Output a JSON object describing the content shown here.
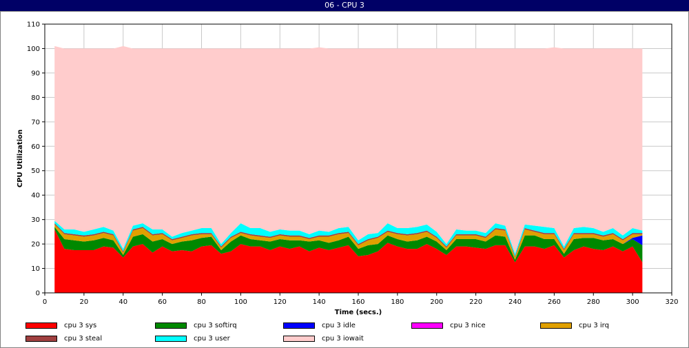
{
  "window": {
    "title": "06 - CPU 3"
  },
  "chart_data": {
    "type": "area",
    "stacked": true,
    "title": "06 - CPU 3",
    "xlabel": "Time (secs.)",
    "ylabel": "CPU Utilization",
    "xlim": [
      0,
      320
    ],
    "ylim": [
      0,
      110
    ],
    "xticks": [
      0,
      20,
      40,
      60,
      80,
      100,
      120,
      140,
      160,
      180,
      200,
      220,
      240,
      260,
      280,
      300,
      320
    ],
    "yticks": [
      0,
      10,
      20,
      30,
      40,
      50,
      60,
      70,
      80,
      90,
      100,
      110
    ],
    "grid": true,
    "legend_position": "bottom",
    "x": [
      5,
      10,
      15,
      20,
      25,
      30,
      35,
      40,
      45,
      50,
      55,
      60,
      65,
      70,
      75,
      80,
      85,
      90,
      95,
      100,
      105,
      110,
      115,
      120,
      125,
      130,
      135,
      140,
      145,
      150,
      155,
      160,
      165,
      170,
      175,
      180,
      185,
      190,
      195,
      200,
      205,
      210,
      215,
      220,
      225,
      230,
      235,
      240,
      245,
      250,
      255,
      260,
      265,
      270,
      275,
      280,
      285,
      290,
      295,
      300,
      305
    ],
    "series": [
      {
        "name": "cpu 3 sys",
        "color": "#ff0000",
        "values": [
          26,
          18,
          17.5,
          17.5,
          17.5,
          19,
          18.5,
          14.5,
          19,
          20,
          16.5,
          19,
          17,
          17.5,
          17,
          19,
          19.5,
          16,
          17,
          20,
          19,
          19,
          17.5,
          19,
          18,
          19,
          17,
          18.5,
          17.5,
          18.5,
          19.5,
          15,
          15.5,
          17,
          20.5,
          19,
          18,
          18,
          20,
          18,
          15.5,
          19,
          19,
          18.5,
          18,
          19.5,
          19.5,
          12.5,
          19,
          19,
          18,
          19.5,
          14.5,
          17.5,
          19,
          18,
          17.5,
          19,
          17,
          19,
          12.5
        ]
      },
      {
        "name": "cpu 3 softirq",
        "color": "#008800",
        "values": [
          1,
          4,
          4,
          3.5,
          4,
          3.5,
          3,
          1,
          4,
          4,
          4.5,
          3,
          3,
          3.5,
          4.5,
          3.5,
          3.5,
          1.5,
          4,
          3.5,
          3,
          2.5,
          3.5,
          3,
          3.5,
          2.5,
          4,
          3,
          3,
          3,
          3.5,
          3,
          4,
          3,
          3,
          3,
          3,
          3.5,
          3,
          3,
          2,
          3,
          3,
          3.5,
          3,
          4,
          3.5,
          1,
          4.5,
          4.5,
          4,
          2.5,
          1.5,
          4.5,
          3.5,
          4.5,
          4,
          3,
          3,
          3,
          7
        ]
      },
      {
        "name": "cpu 3 idle",
        "color": "#0000ff",
        "values": [
          0,
          0,
          0,
          0,
          0,
          0,
          0,
          0,
          0,
          0,
          0,
          0,
          0,
          0,
          0,
          0,
          0,
          0,
          0,
          0,
          0,
          0,
          0,
          0,
          0,
          0,
          0,
          0,
          0,
          0,
          0,
          0,
          0,
          0,
          0,
          0,
          0,
          0,
          0,
          0,
          0,
          0,
          0,
          0,
          0,
          0,
          0,
          0,
          0,
          0,
          0,
          0,
          0,
          0,
          0,
          0,
          0,
          0,
          0,
          0.5,
          4
        ]
      },
      {
        "name": "cpu 3 nice",
        "color": "#ff00ff",
        "values": [
          0,
          0,
          0,
          0,
          0,
          0,
          0,
          0,
          0,
          0,
          0,
          0,
          0,
          0,
          0,
          0,
          0,
          0,
          0,
          0,
          0,
          0,
          0,
          0,
          0,
          0,
          0,
          0,
          0,
          0,
          0,
          0,
          0,
          0,
          0,
          0,
          0,
          0,
          0,
          0,
          0,
          0,
          0,
          0,
          0,
          0,
          0,
          0,
          0,
          0,
          0,
          0,
          0,
          0,
          0,
          0,
          0,
          0,
          0,
          0,
          0
        ]
      },
      {
        "name": "cpu 3 irq",
        "color": "#e0a000",
        "values": [
          1,
          2,
          2,
          2,
          2,
          2,
          2,
          1,
          2.5,
          2.5,
          2.5,
          2,
          1.5,
          1.5,
          2,
          1.5,
          1,
          1,
          1.5,
          1,
          1.5,
          1.5,
          1.5,
          1.5,
          1.5,
          1.5,
          1,
          1.5,
          2.5,
          2.5,
          1.5,
          1.5,
          2,
          2.5,
          1.5,
          2,
          2.5,
          2.5,
          2,
          1.5,
          1,
          1.5,
          1.5,
          1.5,
          1.5,
          2.5,
          2.5,
          1,
          2.5,
          1.5,
          2,
          2,
          1.5,
          2,
          1.5,
          1.5,
          1.5,
          2,
          1.5,
          1.5,
          0.5
        ]
      },
      {
        "name": "cpu 3 steal",
        "color": "#a04040",
        "values": [
          0.5,
          0.5,
          0.5,
          0.5,
          0.5,
          0.5,
          0.5,
          0.5,
          0.5,
          0.5,
          0.5,
          0.5,
          0.5,
          0.5,
          0.5,
          0.5,
          0.5,
          0.5,
          0.5,
          0.5,
          0.5,
          0.5,
          0.5,
          0.5,
          0.5,
          0.5,
          0.5,
          0.5,
          0.5,
          0.5,
          0.5,
          0.5,
          0.5,
          0.5,
          0.5,
          0.5,
          0.5,
          0.5,
          0.5,
          0.5,
          0.5,
          0.5,
          0.5,
          0.5,
          0.5,
          0.5,
          0.5,
          0.5,
          0.5,
          0.5,
          0.5,
          0.5,
          0.5,
          0.5,
          0.5,
          0.5,
          0.5,
          0.5,
          0.5,
          0.5,
          0.5
        ]
      },
      {
        "name": "cpu 3 user",
        "color": "#00ffff",
        "values": [
          1,
          1.5,
          2,
          1.5,
          2,
          2,
          1.5,
          1,
          1.5,
          1.5,
          2,
          1.5,
          1,
          1.5,
          1.5,
          2,
          2,
          1,
          1.5,
          3.5,
          2.5,
          3,
          2,
          2,
          2,
          2,
          1.5,
          2,
          1.5,
          2,
          2,
          1.5,
          2,
          1.5,
          3,
          2,
          2.5,
          2.5,
          2.5,
          2,
          1,
          2,
          1.5,
          1.5,
          1.5,
          2,
          1.5,
          1,
          1.5,
          2,
          2.5,
          2,
          1,
          2,
          2.5,
          2,
          1.5,
          2,
          1.5,
          2,
          1
        ]
      },
      {
        "name": "cpu 3 iowait",
        "color": "#ffcccc",
        "values": [
          71.5,
          74,
          74,
          75,
          74,
          73,
          74.5,
          83,
          72.5,
          71.5,
          74,
          74,
          77,
          75.5,
          74.5,
          73.5,
          73.5,
          80,
          75.5,
          71.5,
          73.5,
          73.5,
          75,
          74,
          74.5,
          74.5,
          76,
          75,
          75,
          73.5,
          73,
          78.5,
          76,
          75.5,
          71.5,
          73.5,
          73.5,
          73,
          72,
          75,
          80,
          74,
          74.5,
          74.5,
          75.5,
          71.5,
          72.5,
          84,
          72,
          72.5,
          73,
          74,
          81,
          73.5,
          73,
          73.5,
          75,
          73.5,
          76.5,
          73.5,
          74.5
        ]
      }
    ]
  }
}
